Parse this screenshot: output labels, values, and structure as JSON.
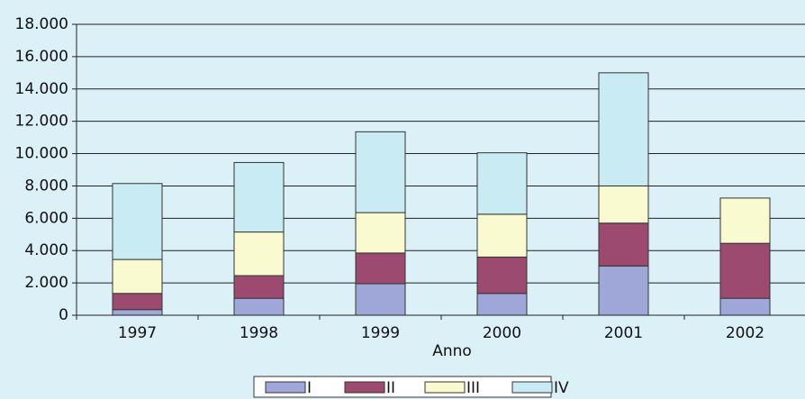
{
  "chart_data": {
    "type": "bar",
    "stacked": true,
    "x_label": "Anno",
    "categories": [
      "1997",
      "1998",
      "1999",
      "2000",
      "2001",
      "2002"
    ],
    "series": [
      {
        "name": "I",
        "color": "#9fa7d8",
        "values": [
          350,
          1050,
          1950,
          1350,
          3050,
          1050
        ]
      },
      {
        "name": "II",
        "color": "#9c4a6f",
        "values": [
          1000,
          1400,
          1900,
          2250,
          2650,
          3400
        ]
      },
      {
        "name": "III",
        "color": "#fafad0",
        "values": [
          2100,
          2700,
          2500,
          2650,
          2300,
          2800
        ]
      },
      {
        "name": "IV",
        "color": "#c9ebf4",
        "values": [
          4700,
          4300,
          5000,
          3800,
          7000,
          0
        ]
      }
    ],
    "ylim": [
      0,
      18000
    ],
    "yticks": [
      0,
      {
        "value": 2000,
        "label": "2.000"
      },
      {
        "value": 4000,
        "label": "4.000"
      },
      {
        "value": 6000,
        "label": "6.000"
      },
      {
        "value": 8000,
        "label": "8.000"
      },
      {
        "value": 10000,
        "label": "10.000"
      },
      {
        "value": 12000,
        "label": "12.000"
      },
      {
        "value": 14000,
        "label": "14.000"
      },
      {
        "value": 16000,
        "label": "16.000"
      },
      {
        "value": 18000,
        "label": "18.000"
      }
    ],
    "grid": true
  }
}
